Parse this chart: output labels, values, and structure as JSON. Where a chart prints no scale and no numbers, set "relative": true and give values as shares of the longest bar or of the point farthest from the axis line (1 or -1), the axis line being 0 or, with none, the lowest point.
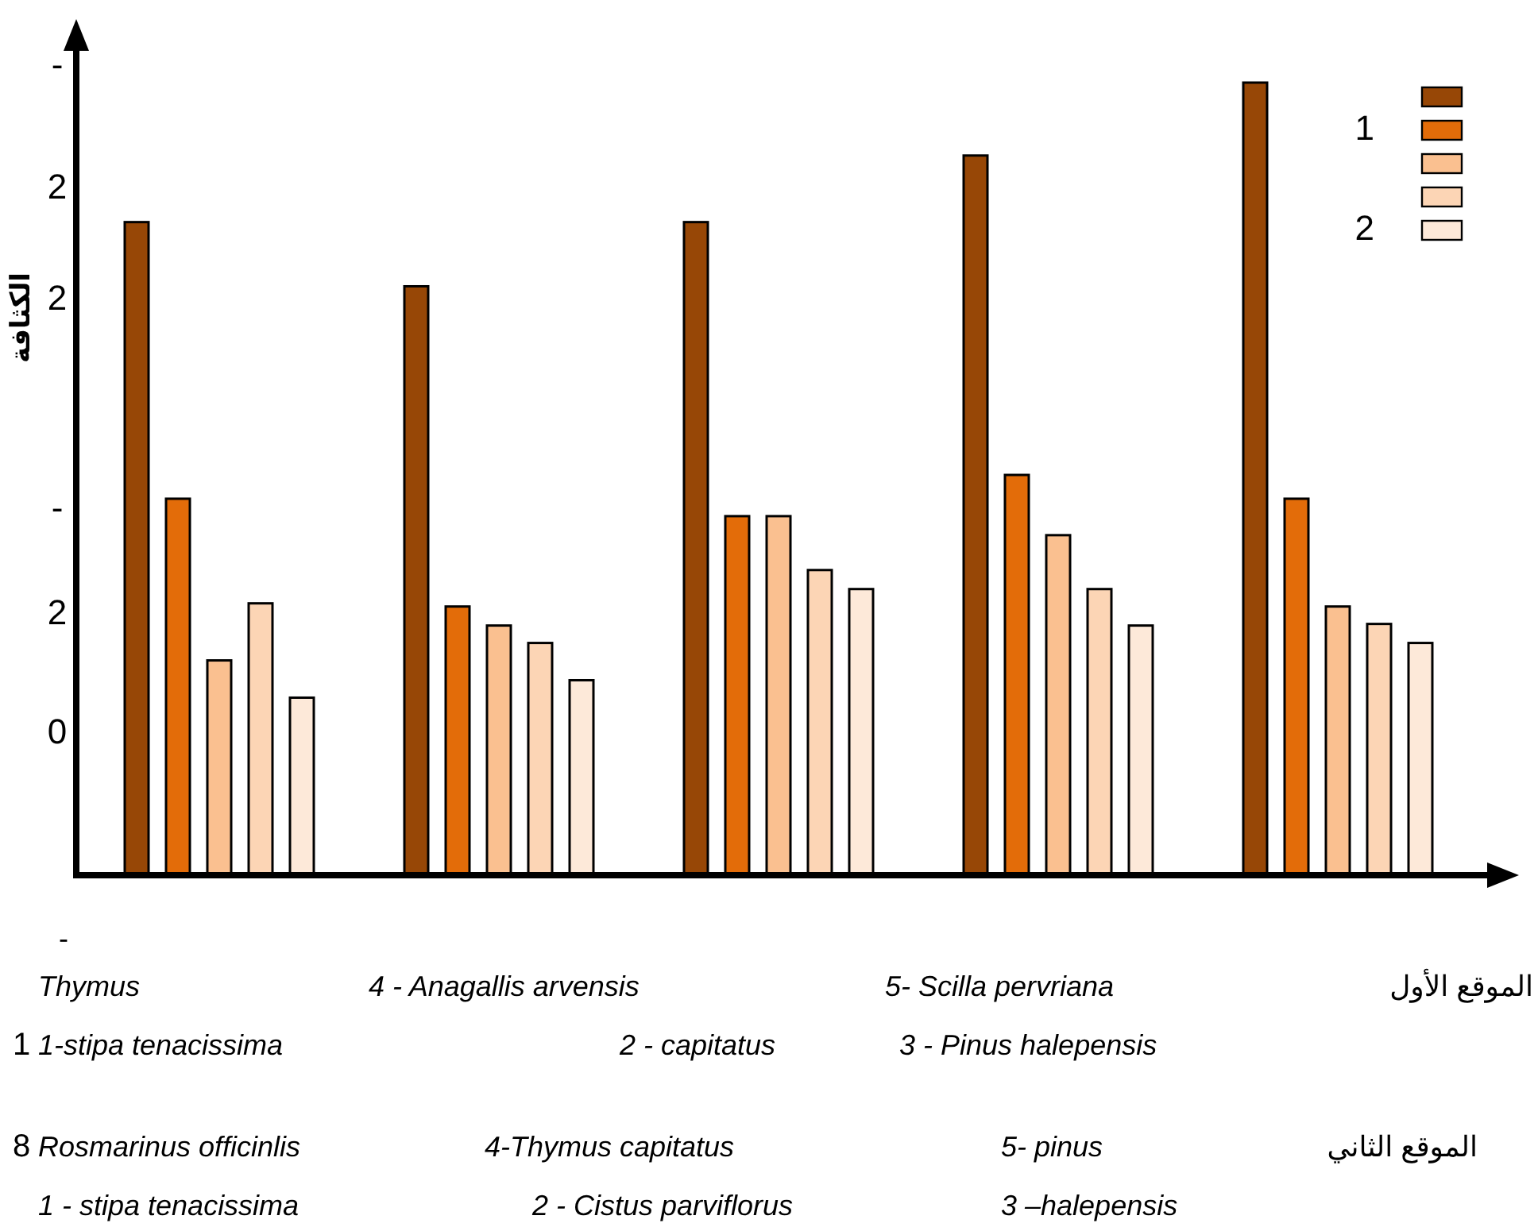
{
  "chart_data": {
    "type": "bar",
    "relative": true,
    "ylabel": "الكثافة",
    "categories": [
      null,
      null,
      null,
      null,
      null
    ],
    "series": [
      {
        "color": "#974706",
        "values": [
          0.824,
          0.743,
          0.824,
          0.908,
          1
        ]
      },
      {
        "name": "1",
        "color": "#e36c09",
        "values": [
          0.475,
          0.339,
          0.453,
          0.505,
          0.475
        ]
      },
      {
        "color": "#fac090",
        "values": [
          0.271,
          0.315,
          0.453,
          0.429,
          0.339
        ]
      },
      {
        "color": "#fcd5b5",
        "values": [
          0.343,
          0.293,
          0.385,
          0.361,
          0.317
        ]
      },
      {
        "name": "2",
        "color": "#fde9d9",
        "values": [
          0.224,
          0.246,
          0.361,
          0.315,
          0.293
        ]
      }
    ],
    "legend": "top right",
    "annotations": [
      "-",
      "2",
      "2",
      "-",
      "2",
      "0",
      "-",
      "1",
      "8",
      "Thymus",
      "4 - Anagallis arvensis",
      "5- Scilla pervriana",
      "الموقع الأول",
      "1-stipa tenacissima",
      "2 - capitatus",
      "3 - Pinus halepensis",
      "Rosmarinus officinlis",
      "4-Thymus capitatus",
      "5- pinus",
      "الموقع الثاني",
      "1 - stipa tenacissima",
      "2 - Cistus parviflorus",
      "3 –halepensis"
    ]
  }
}
